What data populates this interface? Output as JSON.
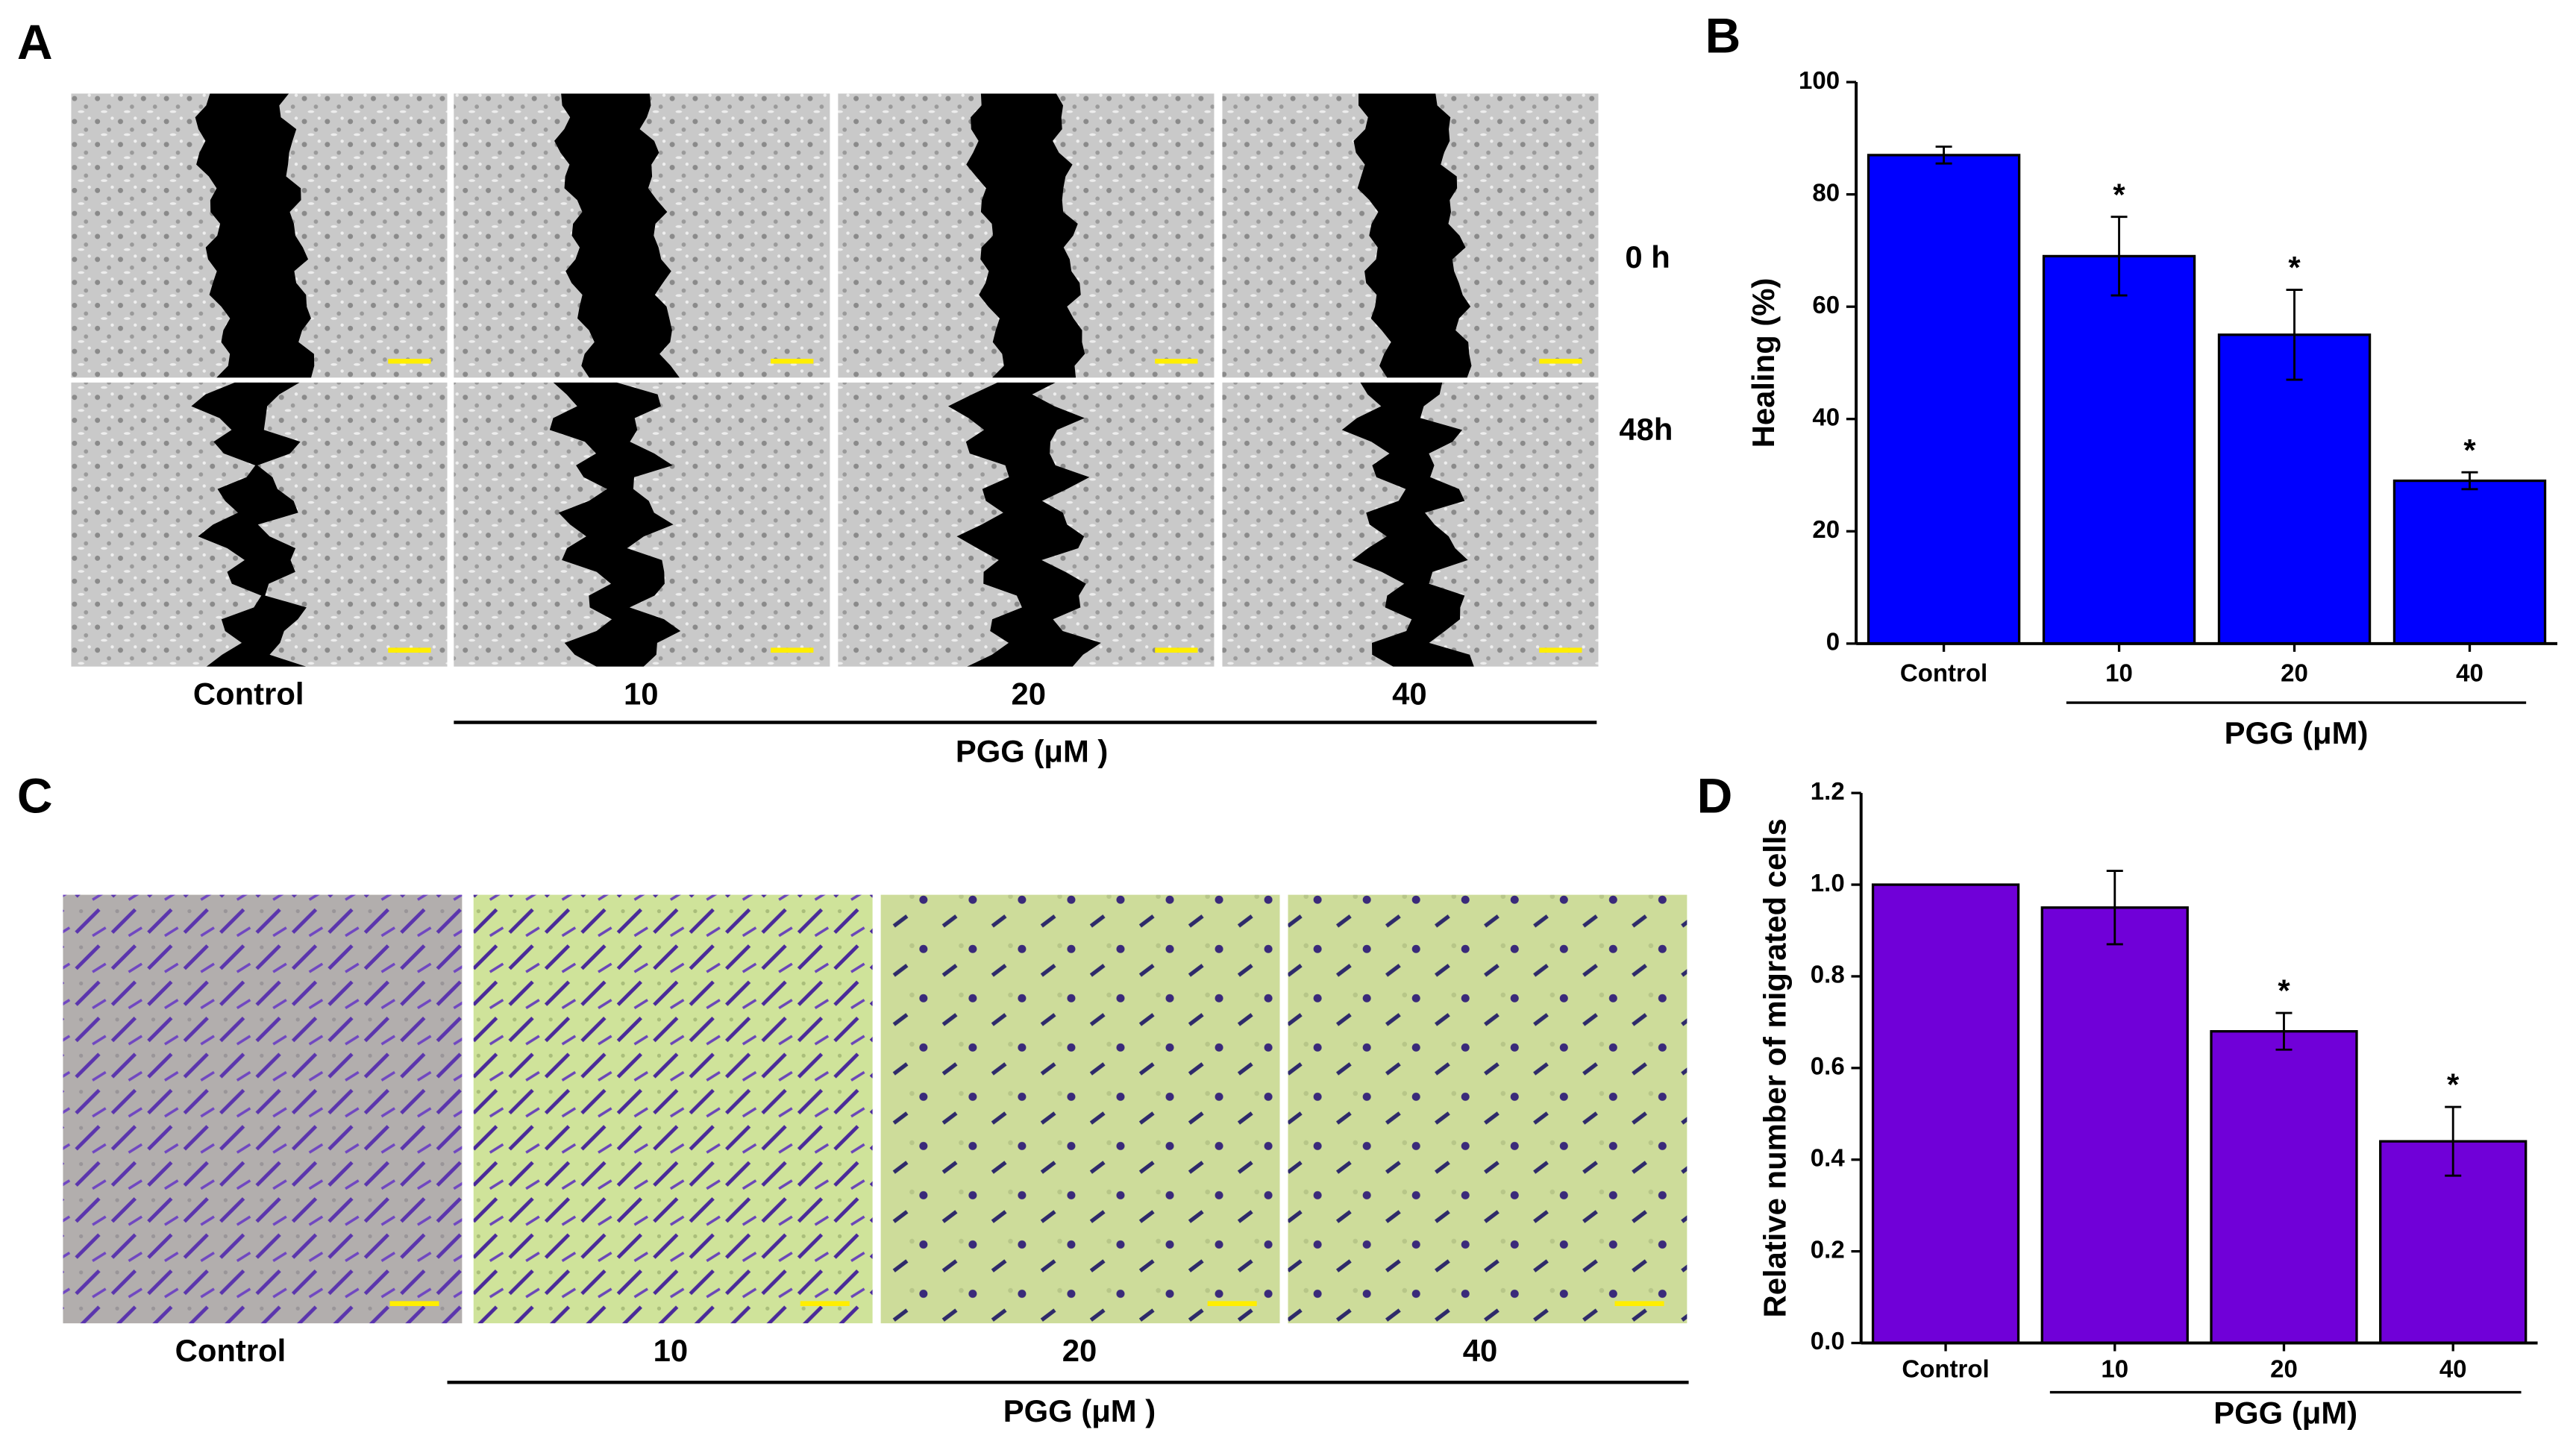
{
  "figure": {
    "panel_a": {
      "letter": "A",
      "conditions": [
        "Control",
        "10",
        "20",
        "40"
      ],
      "group_label": "PGG (μM )",
      "times": [
        "0 h",
        "48h"
      ]
    },
    "panel_c": {
      "letter": "C",
      "conditions": [
        "Control",
        "10",
        "20",
        "40"
      ],
      "group_label": "PGG (μM )"
    }
  },
  "chart_data": [
    {
      "type": "bar",
      "panel_label": "B",
      "ylabel": "Healing (%)",
      "categories": [
        "Control",
        "10",
        "20",
        "40"
      ],
      "group_label": "PGG (μM)",
      "values": [
        87,
        69,
        55,
        29
      ],
      "errors": [
        1.5,
        7,
        8,
        1.5
      ],
      "markers": [
        null,
        "*",
        "*",
        "*"
      ],
      "color": "#0000ff",
      "ylim": [
        0,
        100
      ],
      "yticks": [
        0,
        20,
        40,
        60,
        80,
        100
      ]
    },
    {
      "type": "bar",
      "panel_label": "D",
      "ylabel": "Relative number of migrated cells",
      "categories": [
        "Control",
        "10",
        "20",
        "40"
      ],
      "group_label": "PGG (μM)",
      "values": [
        1.0,
        0.95,
        0.68,
        0.44
      ],
      "errors": [
        0,
        0.08,
        0.04,
        0.075
      ],
      "markers": [
        null,
        null,
        "*",
        "*"
      ],
      "color": "#7000d8",
      "ylim": [
        0,
        1.2
      ],
      "yticks": [
        {
          "value": 0,
          "label": "0.0"
        },
        {
          "value": 0.2,
          "label": "0.2"
        },
        {
          "value": 0.4,
          "label": "0.4"
        },
        {
          "value": 0.6,
          "label": "0.6"
        },
        {
          "value": 0.8,
          "label": "0.8"
        },
        {
          "value": 1.0,
          "label": "1.0"
        },
        {
          "value": 1.2,
          "label": "1.2"
        }
      ]
    }
  ]
}
